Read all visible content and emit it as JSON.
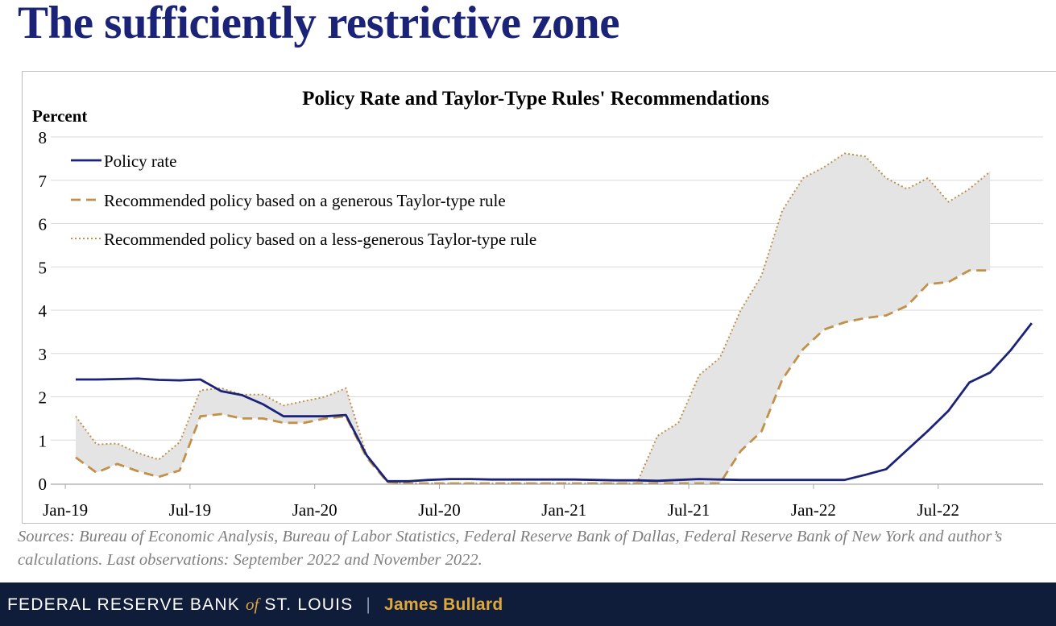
{
  "slide": {
    "title": "The sufficiently restrictive zone",
    "sources": "Sources: Bureau of Economic Analysis, Bureau of Labor Statistics, Federal Reserve Bank of Dallas, Federal Reserve Bank of New York and author’s calculations. Last observations: September 2022 and November 2022."
  },
  "footer": {
    "bank_part1": "FEDERAL RESERVE BANK ",
    "bank_of": "of",
    "bank_part2": " ST. LOUIS",
    "separator": "|",
    "author": "James Bullard"
  },
  "colors": {
    "title": "#1b2378",
    "policy_rate": "#1b2378",
    "generous": "#c0914a",
    "less_generous": "#c0914a",
    "shade": "#e4e4e4",
    "footer_bg": "#0f1c3a",
    "footer_author": "#e0a83a"
  },
  "chart_data": {
    "type": "line",
    "title": "Policy Rate and Taylor-Type Rules' Recommendations",
    "ylabel": "Percent",
    "ylim": [
      0,
      8
    ],
    "yticks": [
      "0",
      "1",
      "2",
      "3",
      "4",
      "5",
      "6",
      "7",
      "8"
    ],
    "xticks": [
      "Jan-19",
      "Jul-19",
      "Jan-20",
      "Jul-20",
      "Jan-21",
      "Jul-21",
      "Jan-22",
      "Jul-22"
    ],
    "legend_position": "top-left",
    "grid": "horizontal",
    "shaded_between": "less-generous and generous rule series",
    "series": [
      {
        "name": "Policy rate",
        "style": "solid",
        "x": [
          "2019-01",
          "2019-02",
          "2019-03",
          "2019-04",
          "2019-05",
          "2019-06",
          "2019-07",
          "2019-08",
          "2019-09",
          "2019-10",
          "2019-11",
          "2019-12",
          "2020-01",
          "2020-02",
          "2020-03",
          "2020-04",
          "2020-05",
          "2020-06",
          "2020-07",
          "2020-08",
          "2020-09",
          "2020-10",
          "2020-11",
          "2020-12",
          "2021-01",
          "2021-02",
          "2021-03",
          "2021-04",
          "2021-05",
          "2021-06",
          "2021-07",
          "2021-08",
          "2021-09",
          "2021-10",
          "2021-11",
          "2021-12",
          "2022-01",
          "2022-02",
          "2022-03",
          "2022-04",
          "2022-05",
          "2022-06",
          "2022-07",
          "2022-08",
          "2022-09",
          "2022-10",
          "2022-11"
        ],
        "values": [
          2.4,
          2.4,
          2.41,
          2.42,
          2.39,
          2.38,
          2.4,
          2.13,
          2.04,
          1.83,
          1.55,
          1.55,
          1.55,
          1.58,
          0.65,
          0.05,
          0.05,
          0.08,
          0.1,
          0.1,
          0.09,
          0.09,
          0.09,
          0.09,
          0.09,
          0.08,
          0.07,
          0.07,
          0.06,
          0.08,
          0.1,
          0.09,
          0.08,
          0.08,
          0.08,
          0.08,
          0.08,
          0.08,
          0.2,
          0.33,
          0.77,
          1.21,
          1.68,
          2.33,
          2.56,
          3.08,
          3.7
        ]
      },
      {
        "name": "Recommended policy based on a generous Taylor-type rule",
        "style": "dashed",
        "x": [
          "2019-01",
          "2019-02",
          "2019-03",
          "2019-04",
          "2019-05",
          "2019-06",
          "2019-07",
          "2019-08",
          "2019-09",
          "2019-10",
          "2019-11",
          "2019-12",
          "2020-01",
          "2020-02",
          "2020-03",
          "2020-04",
          "2020-05",
          "2020-06",
          "2020-07",
          "2020-08",
          "2020-09",
          "2020-10",
          "2020-11",
          "2020-12",
          "2021-01",
          "2021-02",
          "2021-03",
          "2021-04",
          "2021-05",
          "2021-06",
          "2021-07",
          "2021-08",
          "2021-09",
          "2021-10",
          "2021-11",
          "2021-12",
          "2022-01",
          "2022-02",
          "2022-03",
          "2022-04",
          "2022-05",
          "2022-06",
          "2022-07",
          "2022-08",
          "2022-09"
        ],
        "values": [
          0.6,
          0.25,
          0.45,
          0.28,
          0.15,
          0.3,
          1.55,
          1.6,
          1.5,
          1.5,
          1.4,
          1.4,
          1.5,
          1.55,
          0.6,
          0.03,
          0.0,
          0.0,
          0.0,
          0.0,
          0.0,
          0.0,
          0.0,
          0.0,
          0.0,
          0.0,
          0.0,
          0.0,
          0.0,
          0.0,
          0.0,
          0.0,
          0.75,
          1.2,
          2.4,
          3.1,
          3.55,
          3.72,
          3.82,
          3.88,
          4.1,
          4.6,
          4.65,
          4.92,
          4.92
        ]
      },
      {
        "name": "Recommended policy based on a less-generous Taylor-type rule",
        "style": "dotted",
        "x": [
          "2019-01",
          "2019-02",
          "2019-03",
          "2019-04",
          "2019-05",
          "2019-06",
          "2019-07",
          "2019-08",
          "2019-09",
          "2019-10",
          "2019-11",
          "2019-12",
          "2020-01",
          "2020-02",
          "2020-03",
          "2020-04",
          "2020-05",
          "2020-06",
          "2020-07",
          "2020-08",
          "2020-09",
          "2020-10",
          "2020-11",
          "2020-12",
          "2021-01",
          "2021-02",
          "2021-03",
          "2021-04",
          "2021-05",
          "2021-06",
          "2021-07",
          "2021-08",
          "2021-09",
          "2021-10",
          "2021-11",
          "2021-12",
          "2022-01",
          "2022-02",
          "2022-03",
          "2022-04",
          "2022-05",
          "2022-06",
          "2022-07",
          "2022-08",
          "2022-09"
        ],
        "values": [
          1.55,
          0.9,
          0.92,
          0.7,
          0.55,
          0.95,
          2.15,
          2.2,
          2.05,
          2.05,
          1.8,
          1.9,
          2.0,
          2.2,
          0.65,
          0.03,
          0.0,
          0.0,
          0.0,
          0.0,
          0.0,
          0.0,
          0.0,
          0.0,
          0.0,
          0.0,
          0.0,
          0.0,
          1.1,
          1.4,
          2.5,
          2.9,
          4.0,
          4.8,
          6.3,
          7.05,
          7.3,
          7.62,
          7.55,
          7.05,
          6.8,
          7.05,
          6.5,
          6.8,
          7.2
        ]
      }
    ]
  }
}
